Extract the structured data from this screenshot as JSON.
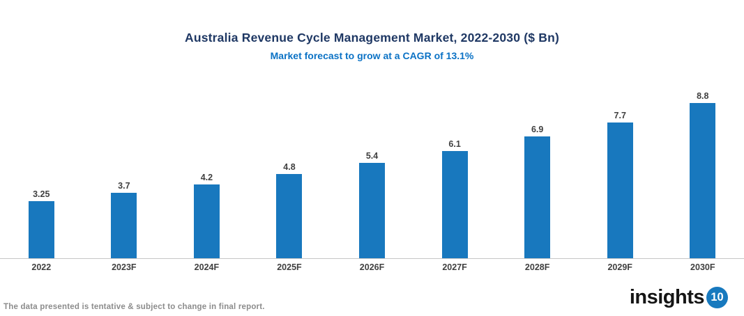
{
  "header": {
    "title": "Australia Revenue Cycle Management Market, 2022-2030 ($ Bn)",
    "subtitle": "Market forecast to grow at a CAGR of 13.1%"
  },
  "chart_data": {
    "type": "bar",
    "title": "Australia Revenue Cycle Management Market, 2022-2030 ($ Bn)",
    "subtitle": "Market forecast to grow at a CAGR of 13.1%",
    "categories": [
      "2022",
      "2023F",
      "2024F",
      "2025F",
      "2026F",
      "2027F",
      "2028F",
      "2029F",
      "2030F"
    ],
    "values": [
      3.25,
      3.7,
      4.2,
      4.8,
      5.4,
      6.1,
      6.9,
      7.7,
      8.8
    ],
    "value_labels": [
      "3.25",
      "3.7",
      "4.2",
      "4.8",
      "5.4",
      "6.1",
      "6.9",
      "7.7",
      "8.8"
    ],
    "xlabel": "",
    "ylabel": "",
    "ylim": [
      0,
      9.7
    ],
    "grid": false,
    "legend": false,
    "value_labels_position": "above-bars"
  },
  "footer": {
    "disclaimer": "The data presented is tentative & subject to change in final report.",
    "logo_text": "insights",
    "logo_badge": "10"
  },
  "colors": {
    "title": "#1F3864",
    "subtitle": "#0B72C5",
    "bar": "#1878BE",
    "axis_line": "#C6C6C6",
    "data_label": "#404040",
    "footer_text": "#8C8C8C",
    "logo_badge_bg": "#1779BE"
  }
}
